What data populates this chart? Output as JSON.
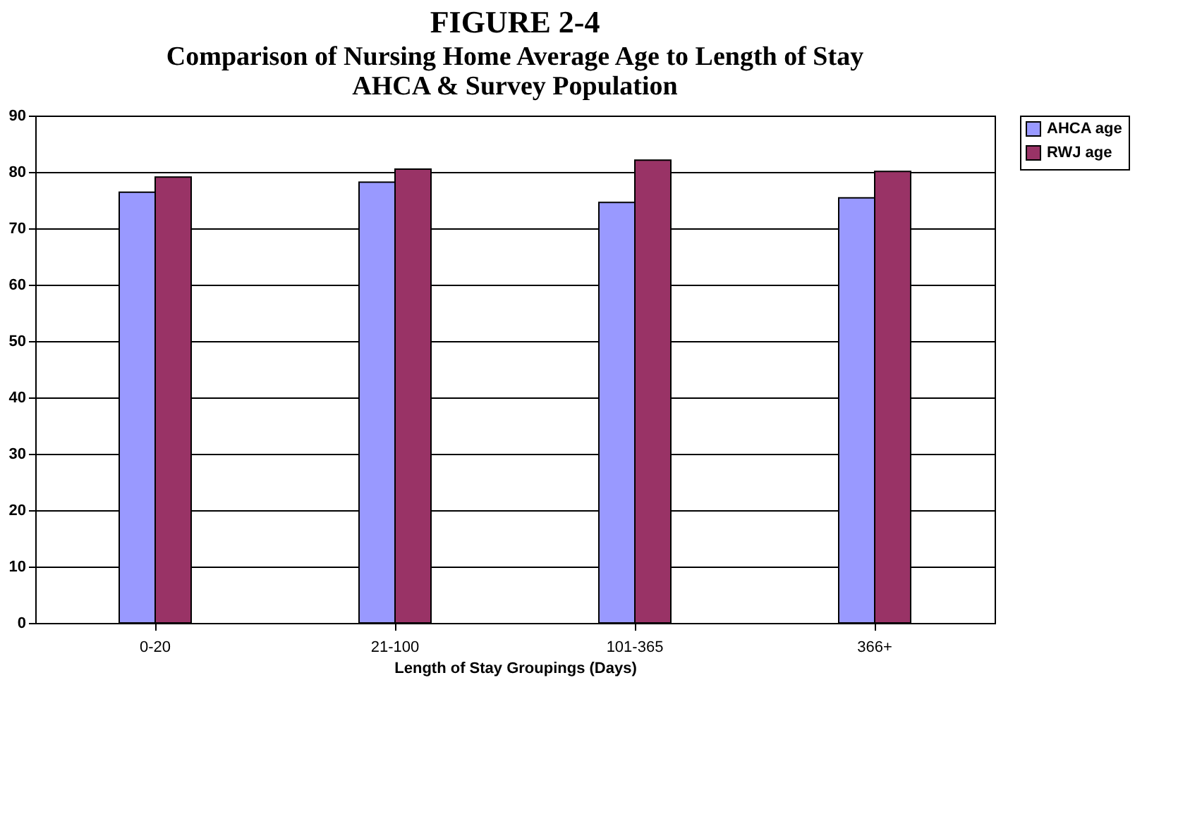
{
  "chart_data": {
    "type": "bar",
    "title": "FIGURE 2-4",
    "subtitle": "Comparison of Nursing Home Average Age to Length of Stay\nAHCA & Survey Population",
    "xlabel": "Length of Stay Groupings (Days)",
    "categories": [
      "0-20",
      "21-100",
      "101-365",
      "366+"
    ],
    "series": [
      {
        "name": "AHCA age",
        "color": "#9999ff",
        "values": [
          76.4,
          78.2,
          74.6,
          75.4
        ]
      },
      {
        "name": "RWJ age",
        "color": "#993366",
        "values": [
          79.1,
          80.5,
          82.1,
          80.1
        ]
      }
    ],
    "ylim": [
      0,
      90
    ],
    "yticks": [
      0,
      10,
      20,
      30,
      40,
      50,
      60,
      70,
      80,
      90
    ],
    "grid": "y",
    "legend": "right"
  }
}
